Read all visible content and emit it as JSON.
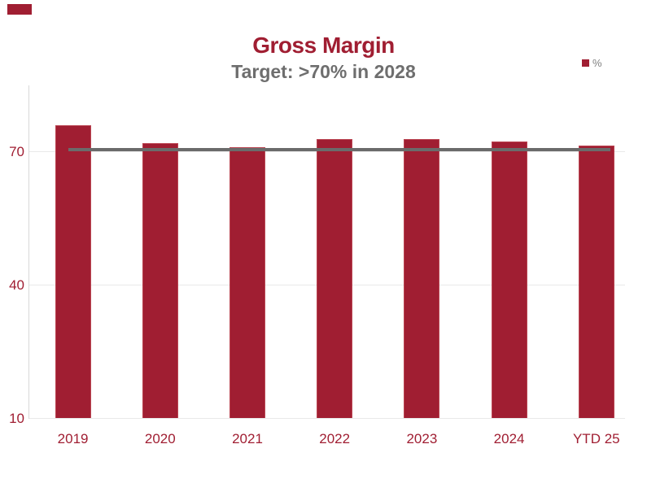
{
  "decor": {
    "corner_accent_color": "#a01e32"
  },
  "header": {
    "title": "Gross Margin",
    "subtitle": "Target: >70% in 2028",
    "title_color": "#a01e32",
    "subtitle_color": "#6e6e6e"
  },
  "legend": {
    "label": "%",
    "marker_color": "#a01e32"
  },
  "chart_data": {
    "type": "bar",
    "title": "Gross Margin",
    "subtitle": "Target: >70% in 2028",
    "categories": [
      "2019",
      "2020",
      "2021",
      "2022",
      "2023",
      "2024",
      "YTD 25"
    ],
    "series": [
      {
        "name": "%",
        "values": [
          76,
          72,
          71,
          73,
          73,
          72.3,
          71.5
        ]
      }
    ],
    "target_line": {
      "value": 70,
      "color": "#6b6b6b"
    },
    "ylim": [
      10,
      85
    ],
    "yticks": [
      70,
      40,
      10
    ],
    "grid": true,
    "bar_color": "#a01e32",
    "bar_edge_color": "#ba4552",
    "axis_label_color": "#a01e32",
    "gridline_color": "#e9e9e9",
    "axis_line_color": "#d9d9d9",
    "legend_position": "top-right",
    "xlabel": "",
    "ylabel": ""
  }
}
